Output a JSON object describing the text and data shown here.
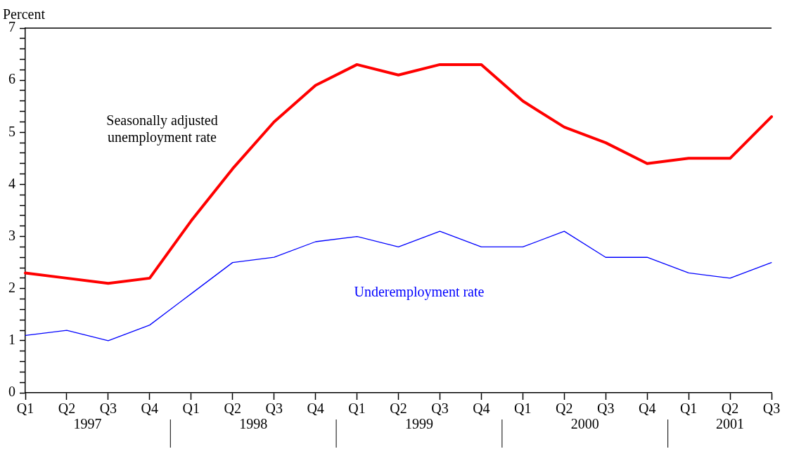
{
  "chart_data": {
    "type": "line",
    "ylabel": "Percent",
    "categories": [
      "Q1",
      "Q2",
      "Q3",
      "Q4",
      "Q1",
      "Q2",
      "Q3",
      "Q4",
      "Q1",
      "Q2",
      "Q3",
      "Q4",
      "Q1",
      "Q2",
      "Q3",
      "Q4",
      "Q1",
      "Q2",
      "Q3"
    ],
    "series": [
      {
        "name": "Seasonally adjusted unemployment rate",
        "color": "#ff0000",
        "values": [
          2.3,
          2.2,
          2.1,
          2.2,
          3.3,
          4.3,
          5.2,
          5.9,
          6.3,
          6.1,
          6.3,
          6.3,
          5.6,
          5.1,
          4.8,
          4.4,
          4.5,
          4.5,
          5.3
        ]
      },
      {
        "name": "Underemployment rate",
        "color": "#0000ff",
        "values": [
          1.1,
          1.2,
          1.0,
          1.3,
          1.9,
          2.5,
          2.6,
          2.9,
          3.0,
          2.8,
          3.1,
          2.8,
          2.8,
          3.1,
          2.6,
          2.6,
          2.3,
          2.2,
          2.5
        ]
      }
    ],
    "annotations": [
      "1997",
      "1998",
      "1999",
      "2000",
      "2001"
    ],
    "ylim": [
      0,
      7
    ],
    "yticks": [
      0,
      {
        "value": 0.2,
        "label": null
      },
      {
        "value": 0.4,
        "label": null
      },
      {
        "value": 0.6,
        "label": null
      },
      {
        "value": 0.8,
        "label": null
      },
      1,
      {
        "value": 1.2,
        "label": null
      },
      {
        "value": 1.4,
        "label": null
      },
      {
        "value": 1.6,
        "label": null
      },
      {
        "value": 1.8,
        "label": null
      },
      2,
      {
        "value": 2.2,
        "label": null
      },
      {
        "value": 2.4,
        "label": null
      },
      {
        "value": 2.6,
        "label": null
      },
      {
        "value": 2.8,
        "label": null
      },
      3,
      {
        "value": 3.2,
        "label": null
      },
      {
        "value": 3.4,
        "label": null
      },
      {
        "value": 3.6,
        "label": null
      },
      {
        "value": 3.8,
        "label": null
      },
      4,
      {
        "value": 4.2,
        "label": null
      },
      {
        "value": 4.4,
        "label": null
      },
      {
        "value": 4.6,
        "label": null
      },
      {
        "value": 4.8,
        "label": null
      },
      5,
      {
        "value": 5.2,
        "label": null
      },
      {
        "value": 5.4,
        "label": null
      },
      {
        "value": 5.6,
        "label": null
      },
      {
        "value": 5.8,
        "label": null
      },
      6,
      {
        "value": 6.2,
        "label": null
      },
      {
        "value": 6.4,
        "label": null
      },
      {
        "value": 6.6,
        "label": null
      },
      {
        "value": 6.8,
        "label": null
      },
      7
    ],
    "grid": false,
    "legend": false,
    "marker": "none",
    "line_style": "solid"
  }
}
